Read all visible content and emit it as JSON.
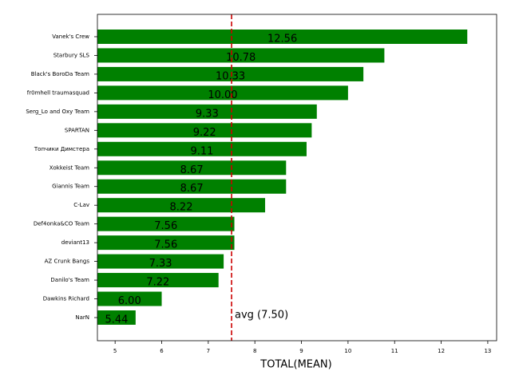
{
  "chart_data": {
    "type": "barh",
    "xlabel": "TOTAL(MEAN)",
    "categories": [
      "Vanek's Crew",
      "Starbury SLS",
      "Black's BoroDa Team",
      "fr0mhell traumasquad",
      "Serg_Lo and Oxy Team",
      "SPARTAN",
      "Топчики Димстера",
      "Xokkeist Team",
      "Giannis Team",
      "C-Lav",
      "Def4onka&CO Team",
      "deviant13",
      "AZ Crunk Bangs",
      "Danilo's Team",
      "Dawkins Richard",
      "NarN"
    ],
    "values": [
      12.56,
      10.78,
      10.33,
      10.0,
      9.33,
      9.22,
      9.11,
      8.67,
      8.67,
      8.22,
      7.56,
      7.56,
      7.33,
      7.22,
      6.0,
      5.44
    ],
    "value_labels": [
      "12.56",
      "10.78",
      "10.33",
      "10.00",
      "9.33",
      "9.22",
      "9.11",
      "8.67",
      "8.67",
      "8.22",
      "7.56",
      "7.56",
      "7.33",
      "7.22",
      "6.00",
      "5.44"
    ],
    "color": "#008000",
    "xlim": [
      4.62,
      13.19
    ],
    "xticks": [
      5,
      6,
      7,
      8,
      9,
      10,
      11,
      12,
      13
    ],
    "avg_line": {
      "value": 7.5,
      "label": "avg (7.50)",
      "color": "#cc0000"
    }
  }
}
